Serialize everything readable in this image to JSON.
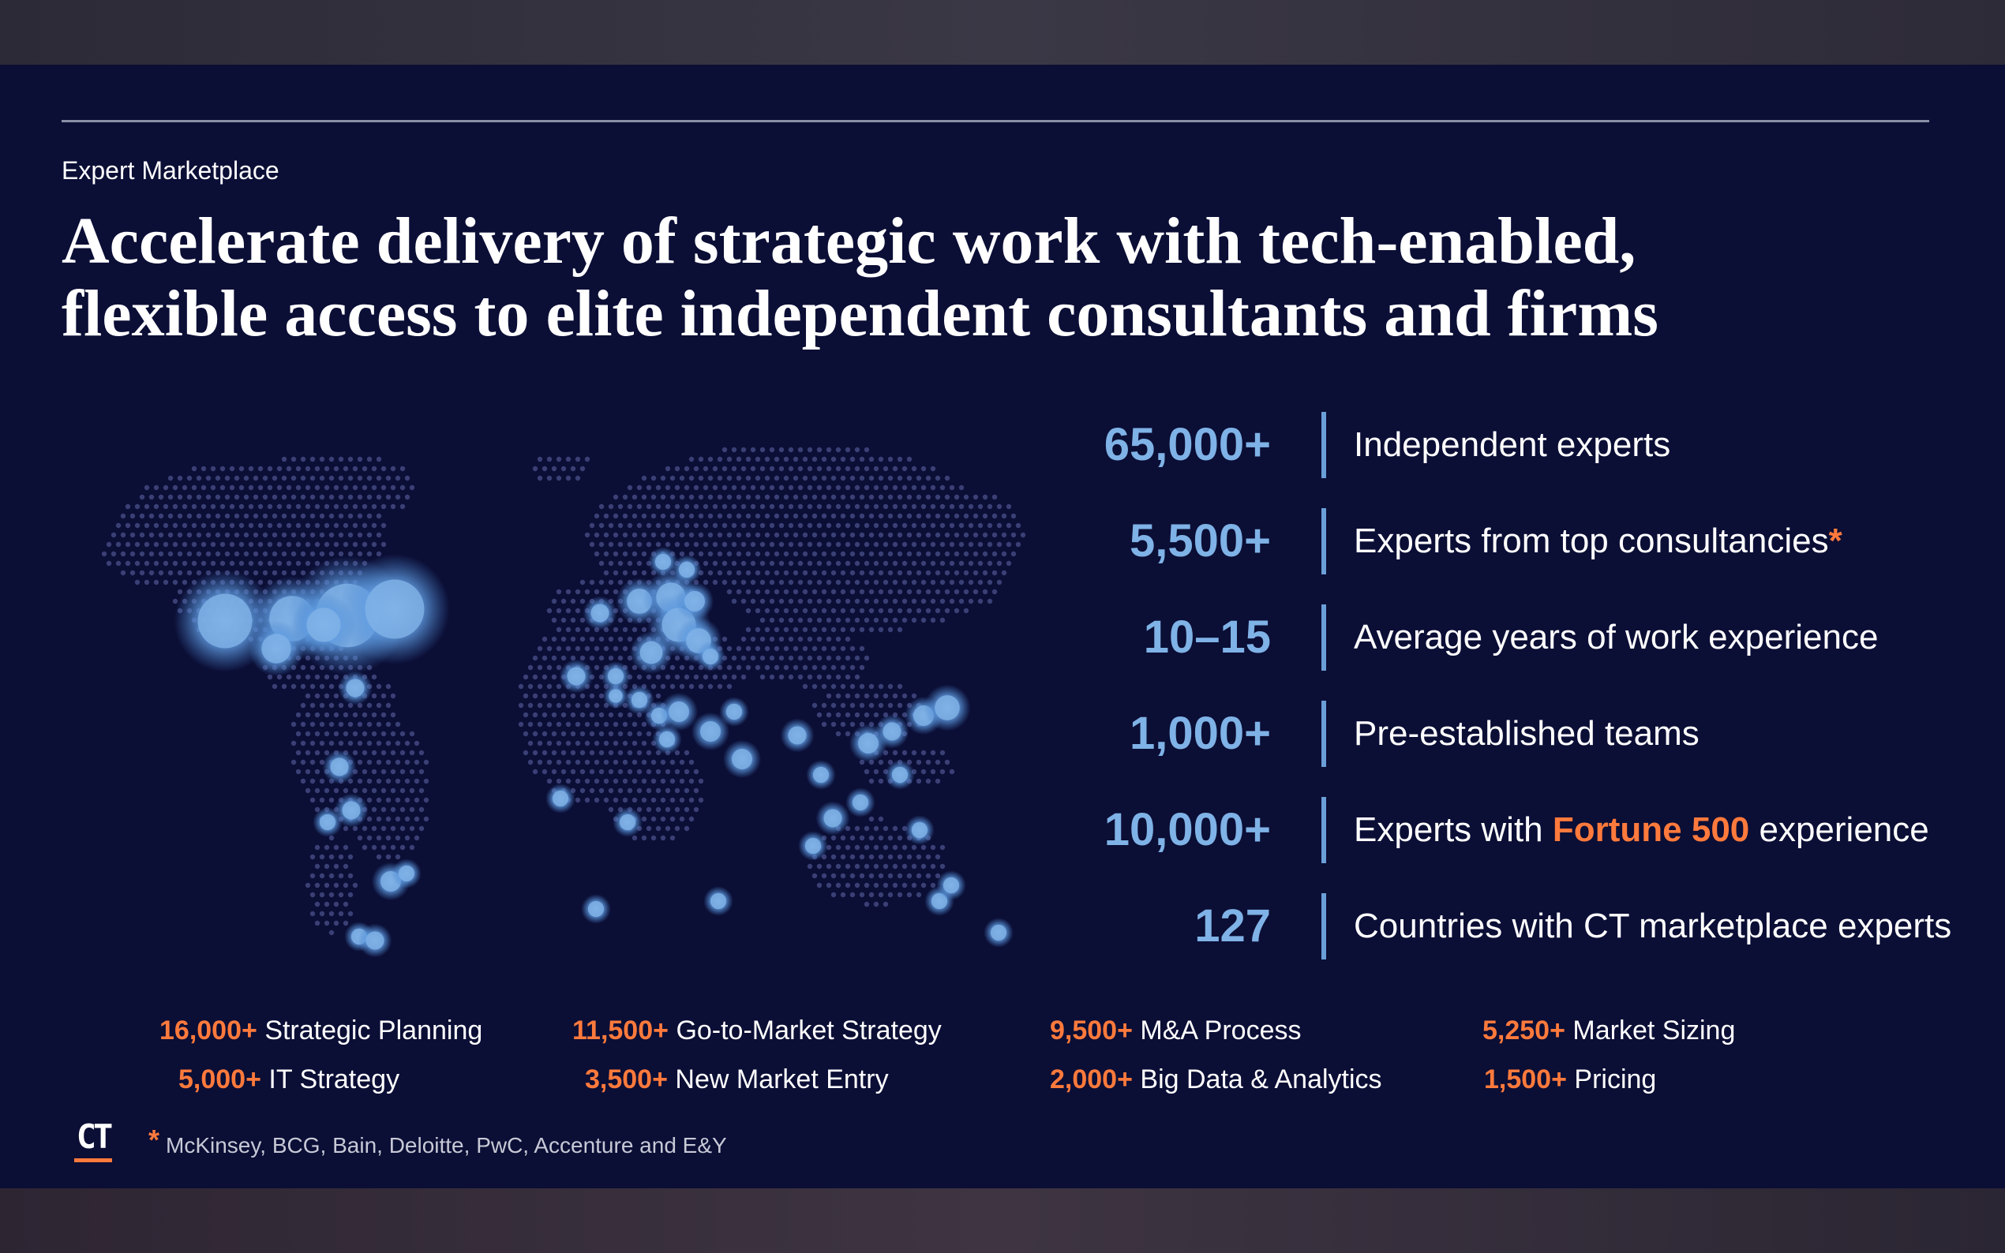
{
  "eyebrow": "Expert Marketplace",
  "headline": {
    "line1": "Accelerate delivery of strategic work with tech-enabled,",
    "line2": "flexible access to elite independent consultants and firms"
  },
  "stats": [
    {
      "value": "65,000+",
      "label_pre": "Independent experts",
      "label_em": "",
      "label_post": ""
    },
    {
      "value": "5,500+",
      "label_pre": "Experts from top consultancies",
      "label_em": "",
      "label_post": "*"
    },
    {
      "value": "10–15",
      "label_pre": "Average years of work experience",
      "label_em": "",
      "label_post": ""
    },
    {
      "value": "1,000+",
      "label_pre": "Pre-established teams",
      "label_em": "",
      "label_post": ""
    },
    {
      "value": "10,000+",
      "label_pre": "Experts with ",
      "label_em": "Fortune 500",
      "label_post": " experience"
    },
    {
      "value": "127",
      "label_pre": "Countries with CT marketplace experts",
      "label_em": "",
      "label_post": ""
    }
  ],
  "specialties": [
    {
      "count": "16,000+",
      "label": "Strategic Planning"
    },
    {
      "count": "11,500+",
      "label": "Go-to-Market Strategy"
    },
    {
      "count": "9,500+",
      "label": "M&A Process"
    },
    {
      "count": "5,250+",
      "label": "Market Sizing"
    },
    {
      "count": "5,000+",
      "label": "IT Strategy"
    },
    {
      "count": "3,500+",
      "label": "New Market Entry"
    },
    {
      "count": "2,000+",
      "label": "Big Data & Analytics"
    },
    {
      "count": "1,500+",
      "label": "Pricing"
    }
  ],
  "footnote": {
    "marker": "*",
    "text": "McKinsey, BCG, Bain, Deloitte, PwC, Accenture and E&Y"
  },
  "logo": "CT",
  "colors": {
    "background": "#0b0e35",
    "accent": "#ff7a3c",
    "stat_blue": "#7fb2e6",
    "dot": "#3a3f75",
    "glow": "#6aa6e8"
  },
  "map_icon": "world-dot-map"
}
